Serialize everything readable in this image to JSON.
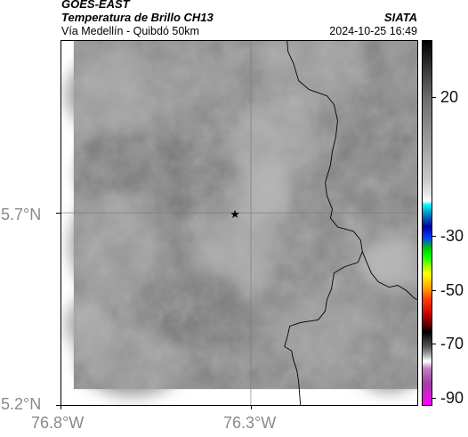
{
  "header": {
    "satellite": "GOES-EAST",
    "product": "Temperatura de Brillo CH13",
    "route": "Vía Medellín - Quibdó 50km",
    "agency": "SIATA",
    "datetime": "2024-10-25 16:49"
  },
  "axes": {
    "y_ticks": [
      {
        "label": "5.7°N",
        "value": 5.7
      },
      {
        "label": "5.2°N",
        "value": 5.2
      }
    ],
    "x_ticks": [
      {
        "label": "76.8°W",
        "value": -76.8
      },
      {
        "label": "76.3°W",
        "value": -76.3
      }
    ]
  },
  "colorbar": {
    "ticks": [
      {
        "label": "20",
        "value": 20
      },
      {
        "label": "-30",
        "value": -30
      },
      {
        "label": "-50",
        "value": -50
      },
      {
        "label": "-70",
        "value": -70
      },
      {
        "label": "-90",
        "value": -90
      }
    ]
  },
  "marker": {
    "symbol": "★",
    "icon": "star-icon"
  },
  "colors": {
    "field_base": "#8c8c8c",
    "border_line": "#000000"
  }
}
